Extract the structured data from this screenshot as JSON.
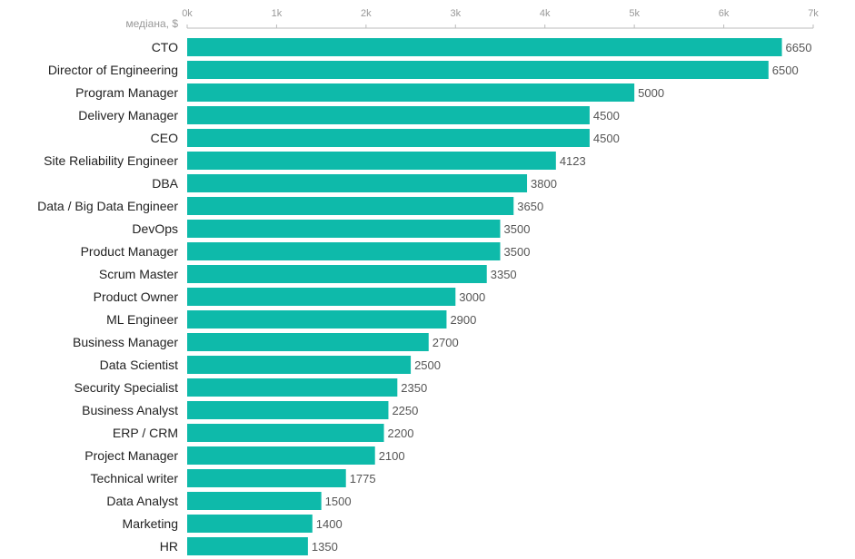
{
  "chart_data": {
    "type": "bar",
    "orientation": "horizontal",
    "xlabel": "медіана, $",
    "xlim": [
      0,
      7000
    ],
    "ticks": [
      {
        "value": 0,
        "label": "0k"
      },
      {
        "value": 1000,
        "label": "1k"
      },
      {
        "value": 2000,
        "label": "2k"
      },
      {
        "value": 3000,
        "label": "3k"
      },
      {
        "value": 4000,
        "label": "4k"
      },
      {
        "value": 5000,
        "label": "5k"
      },
      {
        "value": 6000,
        "label": "6k"
      },
      {
        "value": 7000,
        "label": "7k"
      }
    ],
    "bar_color": "#0ebaaa",
    "grid": false,
    "categories": [
      "CTO",
      "Director of Engineering",
      "Program Manager",
      "Delivery Manager",
      "CEO",
      "Site Reliability Engineer",
      "DBA",
      "Data / Big Data Engineer",
      "DevOps",
      "Product Manager",
      "Scrum Master",
      "Product Owner",
      "ML Engineer",
      "Business Manager",
      "Data Scientist",
      "Security Specialist",
      "Business Analyst",
      "ERP / CRM",
      "Project Manager",
      "Technical writer",
      "Data Analyst",
      "Marketing",
      "HR"
    ],
    "values": [
      6650,
      6500,
      5000,
      4500,
      4500,
      4123,
      3800,
      3650,
      3500,
      3500,
      3350,
      3000,
      2900,
      2700,
      2500,
      2350,
      2250,
      2200,
      2100,
      1775,
      1500,
      1400,
      1350
    ]
  }
}
